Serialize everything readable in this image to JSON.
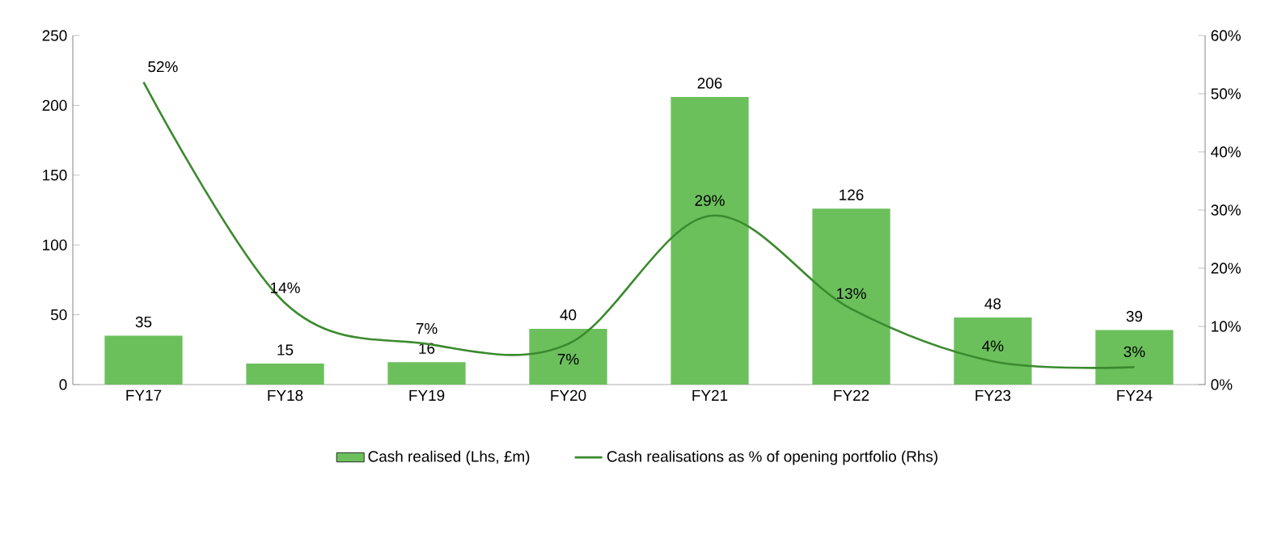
{
  "chart_data": {
    "type": "bar",
    "categories": [
      "FY17",
      "FY18",
      "FY19",
      "FY20",
      "FY21",
      "FY22",
      "FY23",
      "FY24"
    ],
    "series": [
      {
        "name": "Cash realised (Lhs, £m)",
        "color": "#6cc05c",
        "values": [
          35,
          15,
          16,
          40,
          206,
          126,
          48,
          39
        ],
        "value_labels": [
          "35",
          "15",
          "16",
          "40",
          "206",
          "126",
          "48",
          "39"
        ]
      },
      {
        "name": "Cash realisations as % of opening portfolio (Rhs)",
        "type": "line",
        "axis": "y2",
        "color": "#3b8a2e",
        "values": [
          52,
          14,
          7,
          7,
          29,
          13,
          4,
          3
        ],
        "value_labels": [
          "52%",
          "14%",
          "7%",
          "7%",
          "29%",
          "13%",
          "4%",
          "3%"
        ]
      }
    ],
    "ylim": [
      0,
      250
    ],
    "yticks": [
      0,
      50,
      100,
      150,
      200,
      250
    ],
    "y2lim": [
      0,
      60
    ],
    "y2ticks": [
      {
        "value": 0,
        "label": "0%"
      },
      {
        "value": 10,
        "label": "10%"
      },
      {
        "value": 20,
        "label": "20%"
      },
      {
        "value": 30,
        "label": "30%"
      },
      {
        "value": 40,
        "label": "40%"
      },
      {
        "value": 50,
        "label": "50%"
      },
      {
        "value": 60,
        "label": "60%"
      }
    ],
    "legend": "bottom",
    "grid": false,
    "marker": "none",
    "line_style": "solid"
  }
}
